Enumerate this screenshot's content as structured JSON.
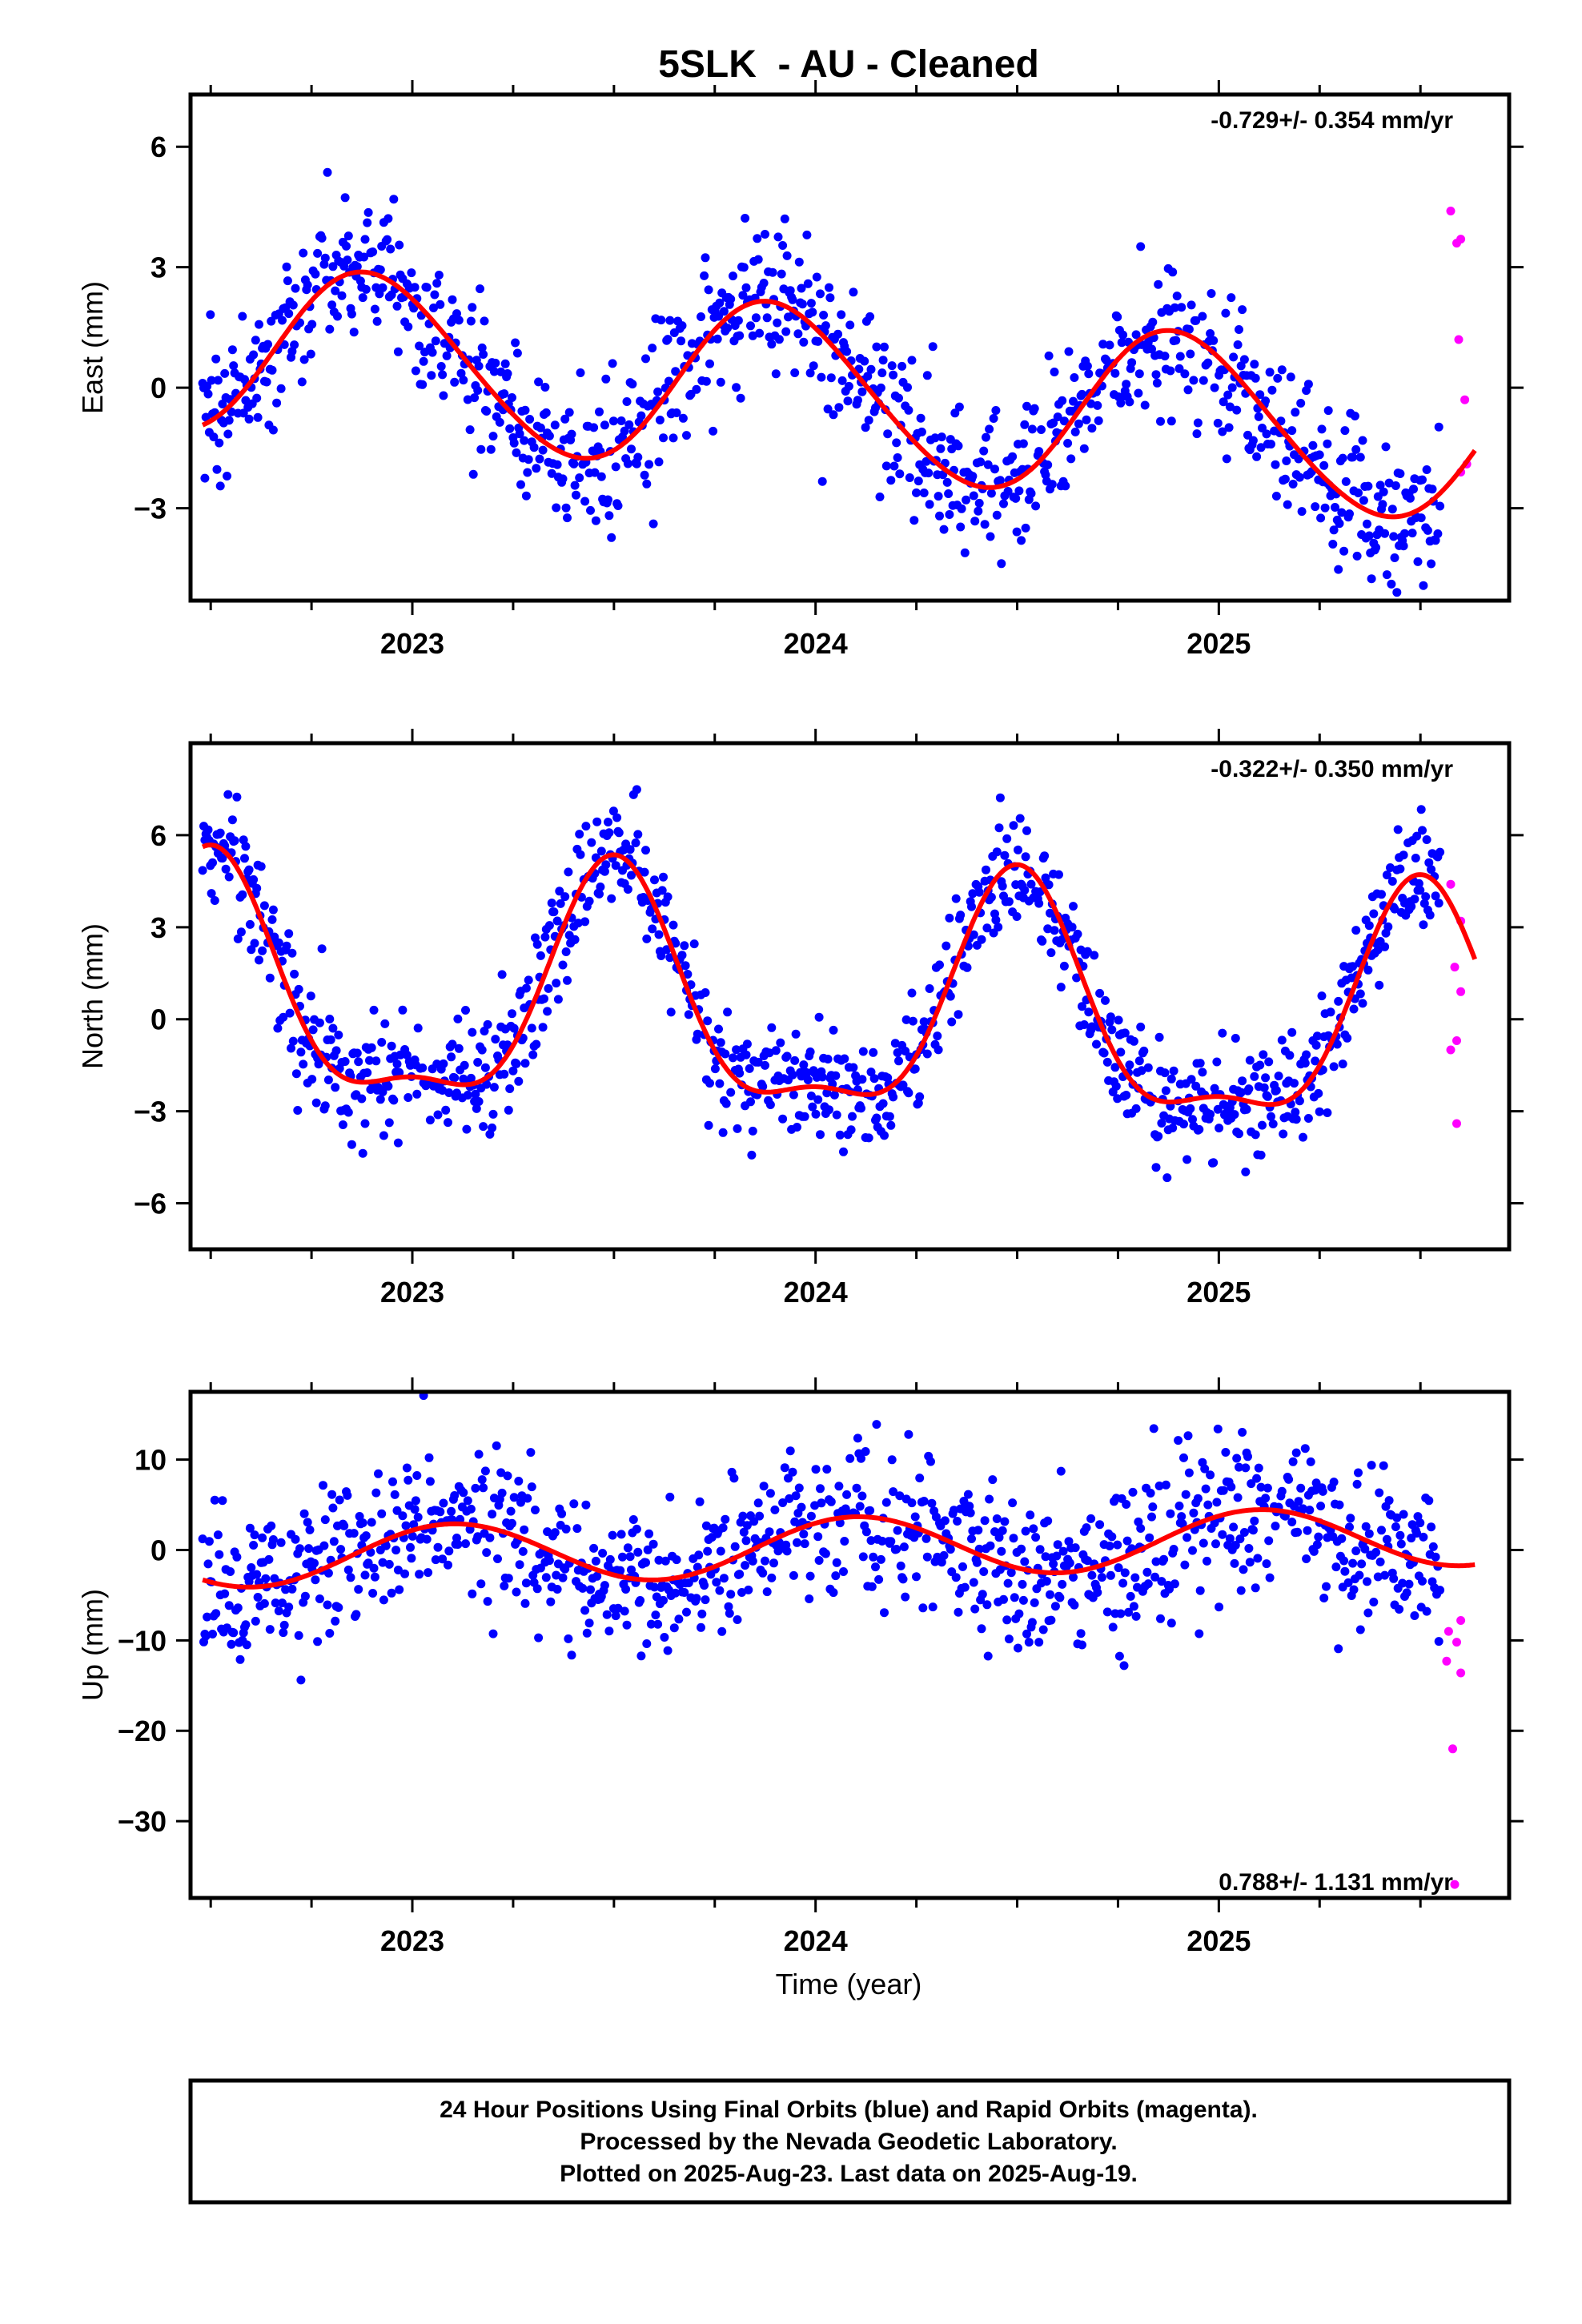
{
  "page": {
    "title": "5SLK  - AU - Cleaned",
    "xlabel": "Time (year)",
    "footer": [
      "24 Hour Positions Using Final Orbits (blue) and Rapid Orbits (magenta).",
      "Processed by the Nevada Geodetic Laboratory.",
      "Plotted on 2025-Aug-23. Last data on 2025-Aug-19."
    ]
  },
  "colors": {
    "final_orbits": "#0000ff",
    "rapid_orbits": "#ff00ff",
    "model_fit": "#ff0000",
    "frame": "#000000"
  },
  "chart_data": [
    {
      "type": "scatter",
      "component": "East",
      "ylabel": "East (mm)",
      "rate_text": "-0.729+/- 0.354 mm/yr",
      "rate_position": "top-right",
      "xlim": [
        2022.45,
        2025.72
      ],
      "ylim": [
        -5.3,
        7.3
      ],
      "xticks": [
        2023,
        2024,
        2025
      ],
      "yticks": [
        -3,
        0,
        3,
        6
      ],
      "fit": {
        "mean": -0.1,
        "trend": -0.729,
        "t0": 2024.0,
        "harmonics": [
          {
            "period": 1.0,
            "amp": 2.1,
            "phase": 2022.9
          },
          {
            "period": 0.5,
            "amp": 0.15,
            "phase": 2022.8
          }
        ]
      },
      "scatter_sigma": 0.95,
      "final_range": [
        2022.48,
        2025.55
      ],
      "rapid_points": [
        [
          2025.575,
          4.4
        ],
        [
          2025.59,
          3.6
        ],
        [
          2025.6,
          3.7
        ],
        [
          2025.595,
          1.2
        ],
        [
          2025.61,
          -0.3
        ],
        [
          2025.6,
          -2.1
        ],
        [
          2025.615,
          -1.9
        ]
      ],
      "series": [
        {
          "name": "Final Orbits (blue)",
          "color": "#0000ff"
        },
        {
          "name": "Rapid Orbits (magenta)",
          "color": "#ff00ff"
        },
        {
          "name": "Model fit",
          "color": "#ff0000"
        }
      ]
    },
    {
      "type": "scatter",
      "component": "North",
      "ylabel": "North (mm)",
      "rate_text": "-0.322+/- 0.350 mm/yr",
      "rate_position": "top-right",
      "xlim": [
        2022.45,
        2025.72
      ],
      "ylim": [
        -7.5,
        9.0
      ],
      "xticks": [
        2023,
        2024,
        2025
      ],
      "yticks": [
        -6,
        -3,
        0,
        3,
        6
      ],
      "fit": {
        "mean": 0.2,
        "trend": -0.322,
        "t0": 2024.0,
        "harmonics": [
          {
            "period": 1.0,
            "amp": 3.7,
            "phase": 2022.5
          },
          {
            "period": 0.5,
            "amp": 1.3,
            "phase": 2022.5
          }
        ]
      },
      "scatter_sigma": 0.95,
      "final_range": [
        2022.48,
        2025.55
      ],
      "rapid_points": [
        [
          2025.575,
          4.4
        ],
        [
          2025.6,
          3.2
        ],
        [
          2025.585,
          1.7
        ],
        [
          2025.6,
          0.9
        ],
        [
          2025.59,
          -0.7
        ],
        [
          2025.575,
          -1.0
        ],
        [
          2025.59,
          -3.4
        ]
      ],
      "series": [
        {
          "name": "Final Orbits (blue)",
          "color": "#0000ff"
        },
        {
          "name": "Rapid Orbits (magenta)",
          "color": "#ff00ff"
        },
        {
          "name": "Model fit",
          "color": "#ff0000"
        }
      ]
    },
    {
      "type": "scatter",
      "component": "Up",
      "ylabel": "Up (mm)",
      "rate_text": "0.788+/- 1.131 mm/yr",
      "rate_position": "bottom-right",
      "xlim": [
        2022.45,
        2025.72
      ],
      "ylim": [
        -38.5,
        17.5
      ],
      "xticks": [
        2023,
        2024,
        2025
      ],
      "yticks": [
        -30,
        -20,
        -10,
        0,
        10
      ],
      "fit": {
        "mean": 0.3,
        "trend": 0.788,
        "t0": 2024.0,
        "harmonics": [
          {
            "period": 1.0,
            "amp": 3.3,
            "phase": 2023.1
          }
        ]
      },
      "scatter_sigma": 4.2,
      "final_range": [
        2022.48,
        2025.55
      ],
      "rapid_points": [
        [
          2025.57,
          -9.0
        ],
        [
          2025.59,
          -10.2
        ],
        [
          2025.6,
          -7.8
        ],
        [
          2025.565,
          -12.3
        ],
        [
          2025.6,
          -13.6
        ],
        [
          2025.58,
          -22.0
        ],
        [
          2025.585,
          -37.0
        ]
      ],
      "series": [
        {
          "name": "Final Orbits (blue)",
          "color": "#0000ff"
        },
        {
          "name": "Rapid Orbits (magenta)",
          "color": "#ff00ff"
        },
        {
          "name": "Model fit",
          "color": "#ff0000"
        }
      ]
    }
  ]
}
